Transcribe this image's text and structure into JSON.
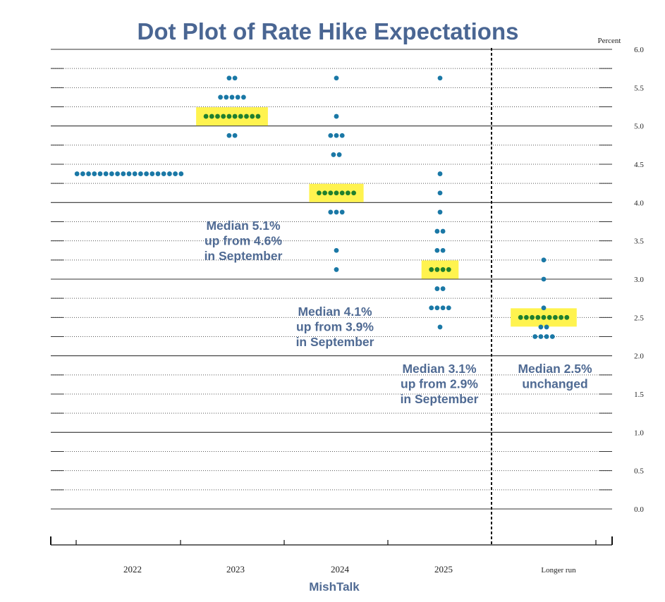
{
  "chart_data": {
    "type": "scatter",
    "title": "Dot Plot of Rate Hike Expectations",
    "y_unit_label": "Percent",
    "ylim": [
      0.0,
      6.0
    ],
    "y_ticks": [
      "6.0",
      "5.5",
      "5.0",
      "4.5",
      "4.0",
      "3.5",
      "3.0",
      "2.5",
      "2.0",
      "1.5",
      "1.0",
      "0.5",
      "0.0"
    ],
    "categories": [
      "2022",
      "2023",
      "2024",
      "2025",
      "Longer run"
    ],
    "grid": "dotted horizontal lines every 0.25, solid at whole numbers",
    "median_color": "#1f7f2e",
    "dot_color": "#1a78a6",
    "highlight_color": "#fff34f",
    "columns": [
      {
        "category": "2022",
        "counts": [
          {
            "y": 4.375,
            "n": 19
          }
        ],
        "median": 4.375,
        "highlight": false
      },
      {
        "category": "2023",
        "counts": [
          {
            "y": 5.625,
            "n": 2
          },
          {
            "y": 5.375,
            "n": 5
          },
          {
            "y": 5.125,
            "n": 10
          },
          {
            "y": 4.875,
            "n": 2
          }
        ],
        "median": 5.125,
        "highlight": true
      },
      {
        "category": "2024",
        "counts": [
          {
            "y": 5.625,
            "n": 1
          },
          {
            "y": 5.125,
            "n": 1
          },
          {
            "y": 4.875,
            "n": 3
          },
          {
            "y": 4.625,
            "n": 2
          },
          {
            "y": 4.125,
            "n": 7
          },
          {
            "y": 3.875,
            "n": 3
          },
          {
            "y": 3.375,
            "n": 1
          },
          {
            "y": 3.125,
            "n": 1
          }
        ],
        "median": 4.125,
        "highlight": true
      },
      {
        "category": "2025",
        "counts": [
          {
            "y": 5.625,
            "n": 1
          },
          {
            "y": 4.375,
            "n": 1
          },
          {
            "y": 4.125,
            "n": 1
          },
          {
            "y": 3.875,
            "n": 1
          },
          {
            "y": 3.625,
            "n": 2
          },
          {
            "y": 3.375,
            "n": 2
          },
          {
            "y": 3.125,
            "n": 4
          },
          {
            "y": 2.875,
            "n": 2
          },
          {
            "y": 2.625,
            "n": 4
          },
          {
            "y": 2.375,
            "n": 1
          }
        ],
        "median": 3.125,
        "highlight": true
      },
      {
        "category": "Longer run",
        "counts": [
          {
            "y": 3.25,
            "n": 1
          },
          {
            "y": 3.0,
            "n": 1
          },
          {
            "y": 2.625,
            "n": 1
          },
          {
            "y": 2.5,
            "n": 9
          },
          {
            "y": 2.375,
            "n": 2
          },
          {
            "y": 2.25,
            "n": 4
          }
        ],
        "median": 2.5,
        "highlight": true
      }
    ],
    "annotations": [
      {
        "lines": [
          "Median 5.1%",
          "up from 4.6%",
          "in September"
        ]
      },
      {
        "lines": [
          "Median 4.1%",
          "up from 3.9%",
          "in September"
        ]
      },
      {
        "lines": [
          "Median 3.1%",
          "up from 2.9%",
          "in September"
        ]
      },
      {
        "lines": [
          "Median 2.5%",
          "unchanged"
        ]
      }
    ],
    "source": "MishTalk"
  }
}
